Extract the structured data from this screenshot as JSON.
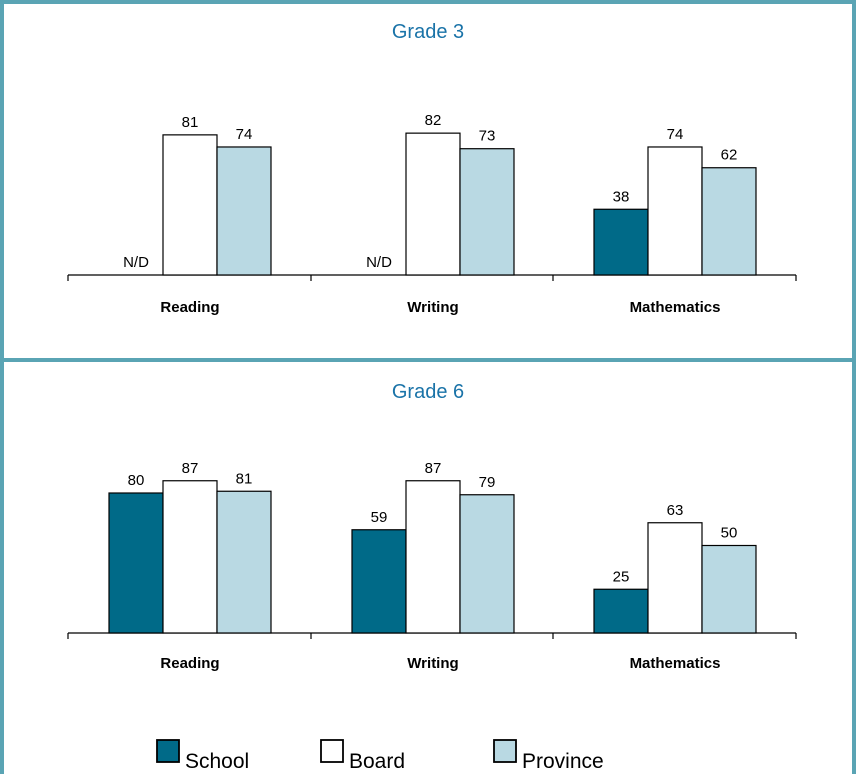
{
  "colors": {
    "frame": "#5aa4b4",
    "school": "#006a88",
    "board": "#ffffff",
    "province": "#b9d9e3",
    "title": "#1a73a8",
    "outline": "#000000"
  },
  "legend": {
    "items": [
      {
        "label": "School",
        "color_key": "school"
      },
      {
        "label": "Board",
        "color_key": "board"
      },
      {
        "label": "Province",
        "color_key": "province"
      }
    ]
  },
  "chart_data": [
    {
      "type": "bar",
      "title": "Grade 3",
      "categories": [
        "Reading",
        "Writing",
        "Mathematics"
      ],
      "series": [
        {
          "name": "School",
          "values": [
            null,
            null,
            38
          ],
          "missing_label": "N/D"
        },
        {
          "name": "Board",
          "values": [
            81,
            82,
            74
          ]
        },
        {
          "name": "Province",
          "values": [
            74,
            73,
            62
          ]
        }
      ],
      "ylim": [
        0,
        100
      ],
      "grid": false,
      "legend": "bottom"
    },
    {
      "type": "bar",
      "title": "Grade 6",
      "categories": [
        "Reading",
        "Writing",
        "Mathematics"
      ],
      "series": [
        {
          "name": "School",
          "values": [
            80,
            59,
            25
          ]
        },
        {
          "name": "Board",
          "values": [
            87,
            87,
            63
          ]
        },
        {
          "name": "Province",
          "values": [
            81,
            79,
            50
          ]
        }
      ],
      "ylim": [
        0,
        100
      ],
      "grid": false,
      "legend": "bottom"
    }
  ]
}
